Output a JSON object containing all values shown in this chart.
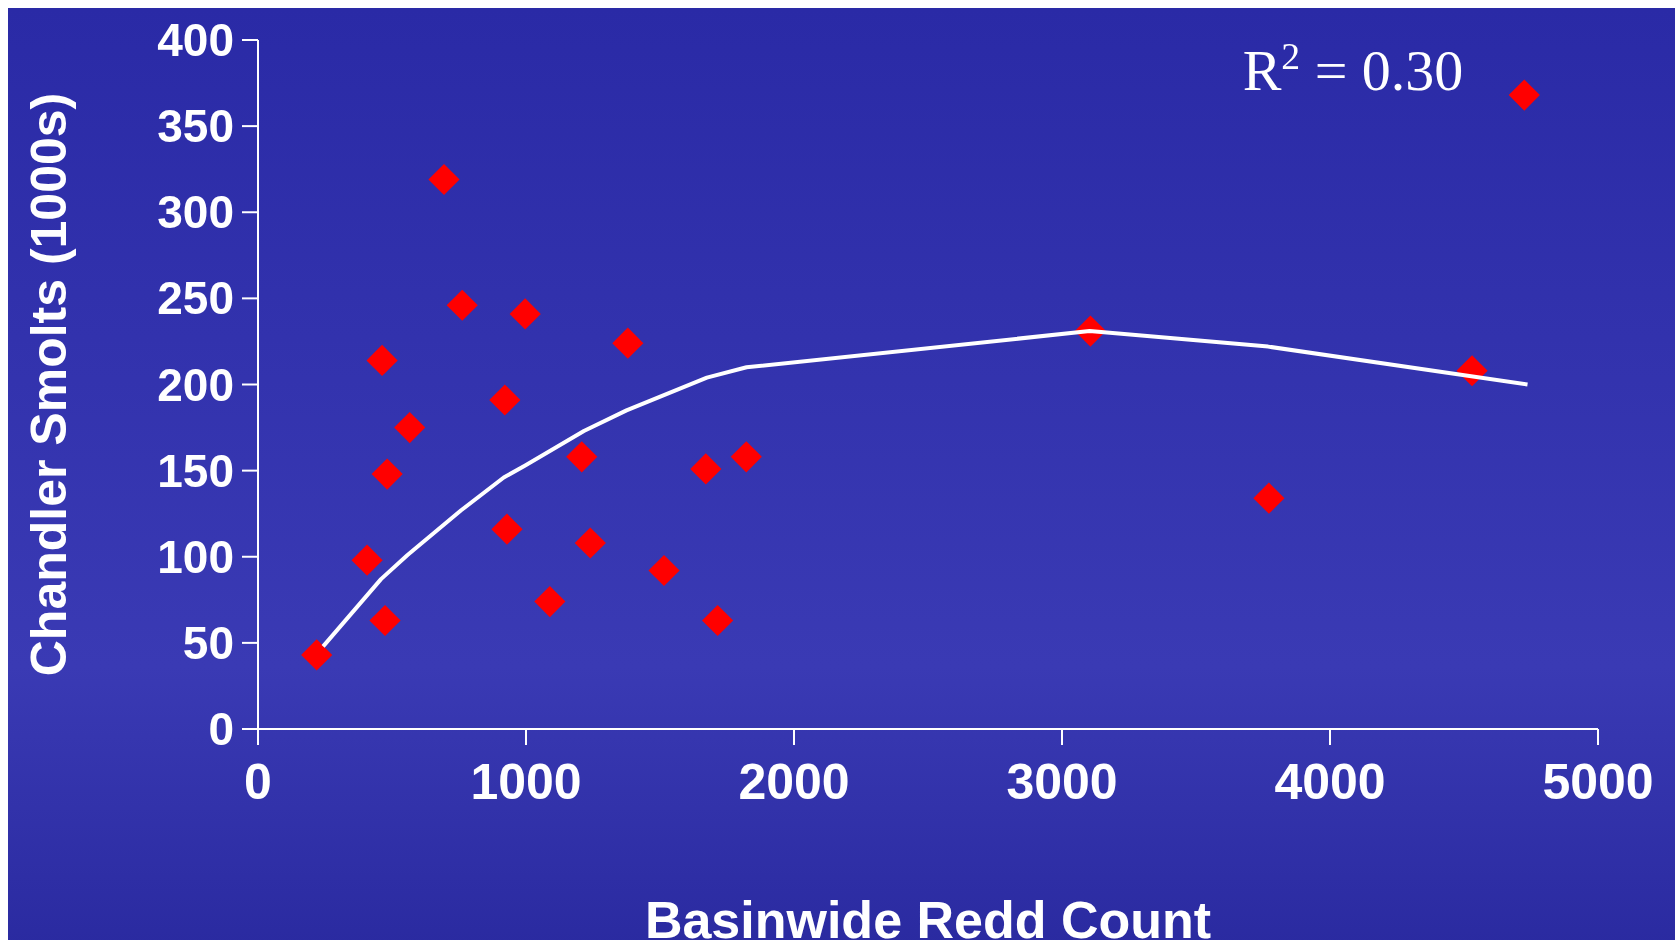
{
  "chart_data": {
    "type": "scatter",
    "xlabel": "Basinwide Redd Count",
    "ylabel": "Chandler Smolts (1000s)",
    "xlim": [
      0,
      5000
    ],
    "xticks": [
      0,
      1000,
      2000,
      3000,
      4000,
      5000
    ],
    "ylim": [
      0,
      400
    ],
    "yticks": [
      0,
      50,
      100,
      150,
      200,
      250,
      300,
      350,
      400
    ],
    "grid": false,
    "annotations": [
      "R$^{2}$ = 0.30"
    ],
    "series": [
      {
        "color": "#ff0000",
        "marker": "diamond",
        "x": [
          219,
          407,
          463,
          482,
          474,
          566,
          694,
          762,
          921,
          929,
          997,
          1089,
          1208,
          1240,
          1380,
          1515,
          1671,
          1715,
          1822,
          3106,
          3772,
          4530,
          4725
        ],
        "values": [
          43,
          98,
          214,
          148,
          63,
          175,
          319,
          246,
          191,
          116,
          241,
          74,
          158,
          108,
          224,
          92,
          151,
          63,
          158,
          231,
          134,
          208,
          368
        ]
      },
      {
        "type": "line",
        "color": "#ffffff",
        "marker": "none",
        "line_style": "solid",
        "x": [
          243,
          459,
          558,
          758,
          917,
          997,
          1216,
          1375,
          1675,
          1823,
          3103,
          3769,
          4737
        ],
        "values": [
          48,
          87,
          101,
          127,
          146,
          153,
          173,
          185,
          204,
          210,
          231,
          222,
          200
        ]
      }
    ]
  }
}
